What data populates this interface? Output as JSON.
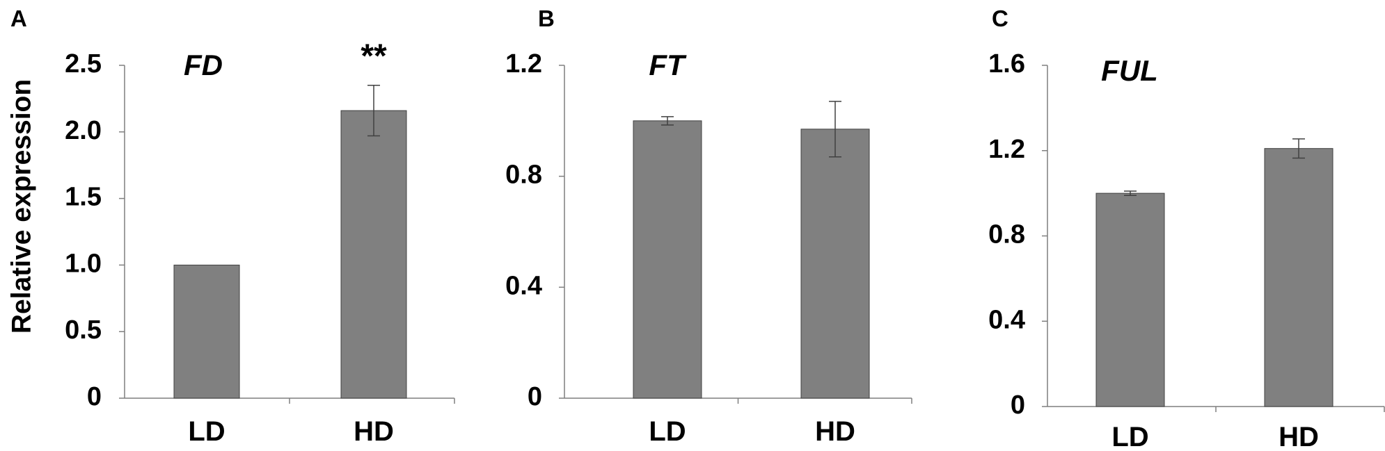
{
  "y_axis_label": "Relative expression",
  "chart_data": [
    {
      "type": "bar",
      "panel": "A",
      "title": "FD",
      "categories": [
        "LD",
        "HD"
      ],
      "values": [
        1.0,
        2.16
      ],
      "errors": [
        0.0,
        0.19
      ],
      "ylim": [
        0,
        2.5
      ],
      "yticks": [
        0,
        0.5,
        1.0,
        1.5,
        2.0,
        2.5
      ],
      "ytick_labels": [
        "0",
        "0.5",
        "1.0",
        "1.5",
        "2.0",
        "2.5"
      ],
      "ylabel": "Relative expression",
      "annotations": [
        {
          "category": "HD",
          "text": "**"
        }
      ],
      "color": "#808080",
      "grid": false
    },
    {
      "type": "bar",
      "panel": "B",
      "title": "FT",
      "categories": [
        "LD",
        "HD"
      ],
      "values": [
        1.0,
        0.97
      ],
      "errors": [
        0.015,
        0.1
      ],
      "ylim": [
        0,
        1.2
      ],
      "yticks": [
        0,
        0.4,
        0.8,
        1.2
      ],
      "ytick_labels": [
        "0",
        "0.4",
        "0.8",
        "1.2"
      ],
      "annotations": [],
      "color": "#808080",
      "grid": false
    },
    {
      "type": "bar",
      "panel": "C",
      "title": "FUL",
      "categories": [
        "LD",
        "HD"
      ],
      "values": [
        1.0,
        1.21
      ],
      "errors": [
        0.01,
        0.045
      ],
      "ylim": [
        0,
        1.6
      ],
      "yticks": [
        0,
        0.4,
        0.8,
        1.2,
        1.6
      ],
      "ytick_labels": [
        "0",
        "0.4",
        "0.8",
        "1.2",
        "1.6"
      ],
      "annotations": [],
      "color": "#808080",
      "grid": false
    }
  ]
}
